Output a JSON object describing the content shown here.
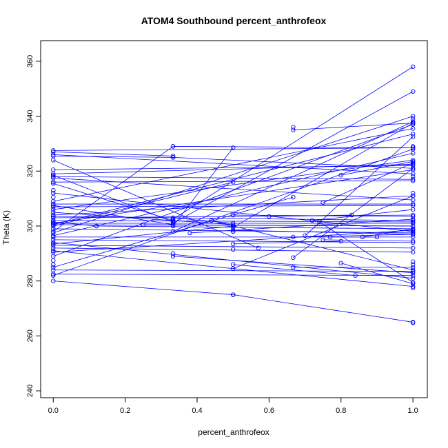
{
  "chart_data": {
    "type": "line",
    "title": "ATOM4 Southbound percent_anthrofeox",
    "xlabel": "percent_anthrofeox",
    "ylabel": "Theta (K)",
    "xlim": [
      -0.035,
      1.04
    ],
    "ylim": [
      237.5,
      367.5
    ],
    "xticks": [
      0.0,
      0.2,
      0.4,
      0.6,
      0.8,
      1.0
    ],
    "xtick_labels": [
      "0.0",
      "0.2",
      "0.4",
      "0.6",
      "0.8",
      "1.0"
    ],
    "yticks": [
      240,
      260,
      280,
      300,
      320,
      340,
      360
    ],
    "ytick_labels": [
      "240",
      "260",
      "280",
      "300",
      "320",
      "340",
      "360"
    ],
    "grid": false,
    "legend": "none",
    "series_color": "#0000ff",
    "segments": [
      [
        [
          0.0,
          327.5
        ],
        [
          1.0,
          328.5
        ]
      ],
      [
        [
          0.0,
          326.0
        ],
        [
          1.0,
          319.0
        ]
      ],
      [
        [
          0.0,
          325.5
        ],
        [
          0.333,
          325.0
        ]
      ],
      [
        [
          0.333,
          325.0
        ],
        [
          1.0,
          321.0
        ]
      ],
      [
        [
          0.0,
          324.0
        ],
        [
          0.57,
          292.0
        ]
      ],
      [
        [
          0.0,
          320.5
        ],
        [
          1.0,
          322.0
        ]
      ],
      [
        [
          0.0,
          319.0
        ],
        [
          1.0,
          322.5
        ]
      ],
      [
        [
          0.0,
          318.5
        ],
        [
          0.333,
          301.5
        ]
      ],
      [
        [
          0.0,
          318.0
        ],
        [
          1.0,
          317.0
        ]
      ],
      [
        [
          0.0,
          316.0
        ],
        [
          1.0,
          316.5
        ]
      ],
      [
        [
          0.0,
          312.0
        ],
        [
          1.0,
          298.0
        ]
      ],
      [
        [
          0.0,
          308.0
        ],
        [
          1.0,
          308.0
        ]
      ],
      [
        [
          0.0,
          307.0
        ],
        [
          1.0,
          307.5
        ]
      ],
      [
        [
          0.0,
          305.0
        ],
        [
          0.5,
          300.5
        ]
      ],
      [
        [
          0.0,
          304.0
        ],
        [
          1.0,
          311.0
        ]
      ],
      [
        [
          0.0,
          303.0
        ],
        [
          1.0,
          304.0
        ]
      ],
      [
        [
          0.0,
          302.0
        ],
        [
          1.0,
          301.5
        ]
      ],
      [
        [
          0.0,
          301.0
        ],
        [
          1.0,
          301.0
        ]
      ],
      [
        [
          0.0,
          300.5
        ],
        [
          1.0,
          300.0
        ]
      ],
      [
        [
          0.0,
          300.0
        ],
        [
          0.5,
          316.0
        ]
      ],
      [
        [
          0.0,
          299.0
        ],
        [
          1.0,
          297.5
        ]
      ],
      [
        [
          0.0,
          298.0
        ],
        [
          0.333,
          329.0
        ]
      ],
      [
        [
          0.0,
          296.0
        ],
        [
          1.0,
          296.0
        ]
      ],
      [
        [
          0.0,
          295.0
        ],
        [
          1.0,
          294.0
        ]
      ],
      [
        [
          0.0,
          294.0
        ],
        [
          1.0,
          281.0
        ]
      ],
      [
        [
          0.0,
          293.0
        ],
        [
          1.0,
          292.0
        ]
      ],
      [
        [
          0.0,
          292.0
        ],
        [
          1.0,
          290.5
        ]
      ],
      [
        [
          0.0,
          291.0
        ],
        [
          1.0,
          278.0
        ]
      ],
      [
        [
          0.0,
          289.0
        ],
        [
          1.0,
          337.0
        ]
      ],
      [
        [
          0.0,
          285.0
        ],
        [
          0.667,
          310.5
        ]
      ],
      [
        [
          0.0,
          282.5
        ],
        [
          1.0,
          282.0
        ]
      ],
      [
        [
          0.0,
          282.0
        ],
        [
          1.0,
          328.0
        ]
      ],
      [
        [
          0.0,
          280.0
        ],
        [
          0.5,
          275.0
        ]
      ],
      [
        [
          0.5,
          275.0
        ],
        [
          1.0,
          265.0
        ]
      ],
      [
        [
          0.0,
          301.5
        ],
        [
          0.12,
          300.0
        ]
      ],
      [
        [
          0.12,
          300.0
        ],
        [
          1.0,
          299.0
        ]
      ],
      [
        [
          0.333,
          329.0
        ],
        [
          1.0,
          328.5
        ]
      ],
      [
        [
          0.333,
          302.5
        ],
        [
          1.0,
          358.0
        ]
      ],
      [
        [
          0.333,
          301.0
        ],
        [
          1.0,
          349.0
        ]
      ],
      [
        [
          0.333,
          298.0
        ],
        [
          1.0,
          338.0
        ]
      ],
      [
        [
          0.333,
          289.0
        ],
        [
          1.0,
          283.0
        ]
      ],
      [
        [
          0.333,
          300.0
        ],
        [
          0.5,
          328.5
        ]
      ],
      [
        [
          0.333,
          303.0
        ],
        [
          0.5,
          301.0
        ]
      ],
      [
        [
          0.5,
          304.0
        ],
        [
          1.0,
          303.5
        ]
      ],
      [
        [
          0.5,
          299.5
        ],
        [
          1.0,
          337.5
        ]
      ],
      [
        [
          0.5,
          298.5
        ],
        [
          1.0,
          297.0
        ]
      ],
      [
        [
          0.5,
          293.5
        ],
        [
          0.8,
          294.5
        ]
      ],
      [
        [
          0.5,
          284.5
        ],
        [
          1.0,
          311.0
        ]
      ],
      [
        [
          0.25,
          300.5
        ],
        [
          1.0,
          300.0
        ]
      ],
      [
        [
          0.38,
          297.5
        ],
        [
          1.0,
          302.5
        ]
      ],
      [
        [
          0.667,
          335.0
        ],
        [
          1.0,
          337.5
        ]
      ],
      [
        [
          0.667,
          296.0
        ],
        [
          1.0,
          297.0
        ]
      ],
      [
        [
          0.667,
          288.5
        ],
        [
          1.0,
          321.0
        ]
      ],
      [
        [
          0.667,
          285.0
        ],
        [
          1.0,
          285.0
        ]
      ],
      [
        [
          0.72,
          302.0
        ],
        [
          1.0,
          306.0
        ]
      ],
      [
        [
          0.74,
          301.5
        ],
        [
          1.0,
          279.5
        ]
      ],
      [
        [
          0.75,
          308.5
        ],
        [
          1.0,
          323.0
        ]
      ],
      [
        [
          0.75,
          295.0
        ],
        [
          1.0,
          294.5
        ]
      ],
      [
        [
          0.77,
          296.0
        ],
        [
          0.9,
          296.0
        ]
      ],
      [
        [
          0.8,
          318.5
        ],
        [
          1.0,
          323.5
        ]
      ],
      [
        [
          0.8,
          286.5
        ],
        [
          1.0,
          279.0
        ]
      ],
      [
        [
          0.83,
          304.0
        ],
        [
          0.6,
          303.5
        ]
      ],
      [
        [
          0.86,
          296.0
        ],
        [
          1.0,
          299.0
        ]
      ],
      [
        [
          0.84,
          282.0
        ],
        [
          0.5,
          286.0
        ]
      ],
      [
        [
          0.44,
          302.0
        ],
        [
          1.0,
          284.0
        ]
      ],
      [
        [
          0.7,
          296.5
        ],
        [
          1.0,
          332.5
        ]
      ],
      [
        [
          0.0,
          327.0
        ],
        [
          0.333,
          325.5
        ]
      ],
      [
        [
          0.0,
          317.5
        ],
        [
          1.0,
          309.5
        ]
      ],
      [
        [
          0.0,
          315.5
        ],
        [
          0.333,
          302.0
        ]
      ],
      [
        [
          0.0,
          309.0
        ],
        [
          1.0,
          335.5
        ]
      ],
      [
        [
          0.0,
          307.5
        ],
        [
          0.333,
          300.5
        ]
      ],
      [
        [
          0.0,
          306.0
        ],
        [
          1.0,
          324.0
        ]
      ],
      [
        [
          0.0,
          303.5
        ],
        [
          1.0,
          302.0
        ]
      ],
      [
        [
          0.0,
          297.5
        ],
        [
          1.0,
          340.0
        ]
      ],
      [
        [
          0.0,
          296.5
        ],
        [
          1.0,
          326.5
        ]
      ],
      [
        [
          0.0,
          293.5
        ],
        [
          0.5,
          300.0
        ]
      ],
      [
        [
          0.0,
          300.5
        ],
        [
          1.0,
          333.5
        ]
      ],
      [
        [
          0.0,
          290.5
        ],
        [
          1.0,
          298.5
        ]
      ],
      [
        [
          0.0,
          284.0
        ],
        [
          1.0,
          283.5
        ]
      ],
      [
        [
          0.0,
          301.0
        ],
        [
          1.0,
          320.5
        ]
      ]
    ],
    "extra_points": [
      [
        1.0,
        264.8
      ],
      [
        1.0,
        277.5
      ],
      [
        1.0,
        287.0
      ],
      [
        1.0,
        286.0
      ],
      [
        1.0,
        312.0
      ],
      [
        1.0,
        318.0
      ],
      [
        1.0,
        329.0
      ],
      [
        1.0,
        339.0
      ],
      [
        0.333,
        290.0
      ],
      [
        0.5,
        291.5
      ],
      [
        0.5,
        298.0
      ],
      [
        0.0,
        310.5
      ],
      [
        0.0,
        313.0
      ],
      [
        0.0,
        287.5
      ],
      [
        0.0,
        286.0
      ],
      [
        0.667,
        336.0
      ]
    ]
  }
}
